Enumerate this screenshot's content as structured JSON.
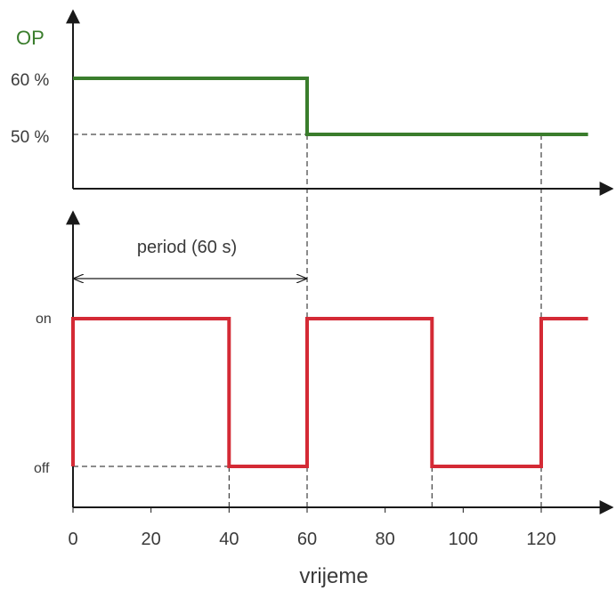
{
  "chart_data": [
    {
      "type": "line",
      "step": "post",
      "title": "",
      "ylabel": "OP",
      "xlabel": "",
      "yticks": [
        "50 %",
        "60 %"
      ],
      "series": [
        {
          "color": "#3a7d2c",
          "x": [
            0,
            60,
            60,
            132
          ],
          "y": [
            60,
            60,
            50,
            50
          ]
        }
      ],
      "xlim": [
        0,
        140
      ],
      "ylim": [
        40,
        70
      ]
    },
    {
      "type": "line",
      "step": "post",
      "title": "",
      "xlabel": "vrijeme",
      "ylabel": "",
      "state_labels": {
        "on": "on",
        "off": "off"
      },
      "period_annotation": {
        "label": "period (60 s)",
        "x_start": 0,
        "x_end": 60
      },
      "xticks": [
        0,
        20,
        40,
        60,
        80,
        100,
        120
      ],
      "series": [
        {
          "color": "#d42a35",
          "x": [
            0,
            0,
            40,
            40,
            60,
            60,
            92,
            92,
            120,
            120,
            132
          ],
          "y": [
            0,
            1,
            1,
            0,
            0,
            1,
            1,
            0,
            0,
            1,
            1
          ]
        }
      ],
      "xlim": [
        0,
        140
      ],
      "ylim": [
        0,
        1
      ]
    }
  ]
}
